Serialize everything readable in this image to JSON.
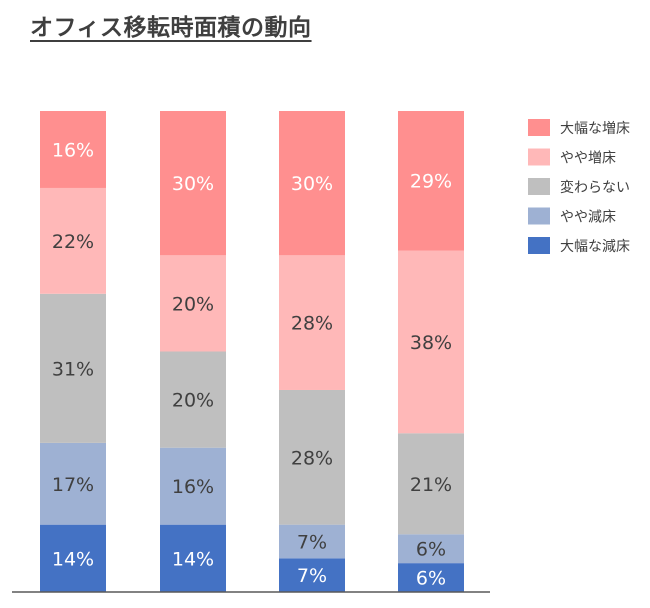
{
  "title": "オフィス移転時面積の動向",
  "chart_data": {
    "type": "bar",
    "stacked": true,
    "categories": [
      "",
      "",
      "",
      ""
    ],
    "series": [
      {
        "name": "大幅な減床",
        "color": "#4472c4",
        "values": [
          14,
          14,
          7,
          6
        ]
      },
      {
        "name": "やや減床",
        "color": "#9eb1d3",
        "values": [
          17,
          16,
          7,
          6
        ]
      },
      {
        "name": "変わらない",
        "color": "#bfbfbf",
        "values": [
          31,
          20,
          28,
          21
        ]
      },
      {
        "name": "やや増床",
        "color": "#ffb8b8",
        "values": [
          22,
          20,
          28,
          38
        ]
      },
      {
        "name": "大幅な増床",
        "color": "#ff8f8f",
        "values": [
          16,
          30,
          30,
          29
        ]
      }
    ],
    "labels": [
      [
        "14%",
        "17%",
        "31%",
        "22%",
        "16%"
      ],
      [
        "14%",
        "16%",
        "20%",
        "20%",
        "30%"
      ],
      [
        "7%",
        "7%",
        "28%",
        "28%",
        "30%"
      ],
      [
        "6%",
        "6%",
        "21%",
        "38%",
        "29%"
      ]
    ],
    "legend_order": [
      "大幅な増床",
      "やや増床",
      "変わらない",
      "やや減床",
      "大幅な減床"
    ],
    "legend_position": "right",
    "ylim": [
      0,
      100
    ],
    "grid": false
  }
}
